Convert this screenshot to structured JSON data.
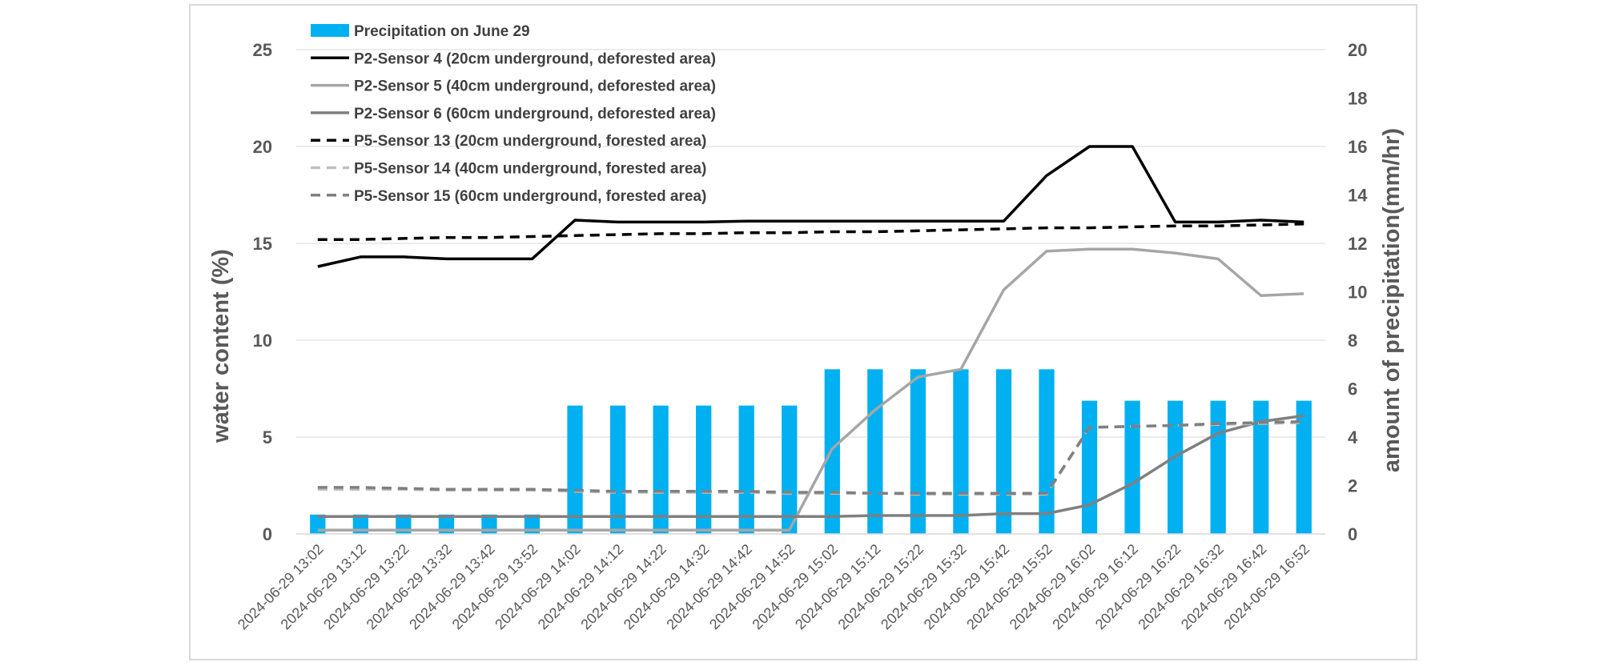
{
  "chart_data": {
    "type": "bar+line",
    "categories": [
      "2024-06-29 13:02",
      "2024-06-29 13:12",
      "2024-06-29 13:22",
      "2024-06-29 13:32",
      "2024-06-29 13:42",
      "2024-06-29 13:52",
      "2024-06-29 14:02",
      "2024-06-29 14:12",
      "2024-06-29 14:22",
      "2024-06-29 14:32",
      "2024-06-29 14:42",
      "2024-06-29 14:52",
      "2024-06-29 15:02",
      "2024-06-29 15:12",
      "2024-06-29 15:22",
      "2024-06-29 15:32",
      "2024-06-29 15:42",
      "2024-06-29 15:52",
      "2024-06-29 16:02",
      "2024-06-29 16:12",
      "2024-06-29 16:22",
      "2024-06-29 16:32",
      "2024-06-29 16:42",
      "2024-06-29 16:52"
    ],
    "ylabel": "water content (%)",
    "y2label": "amount of precipitation(mm/hr)",
    "ylim": [
      0,
      25
    ],
    "y_ticks": [
      0,
      5,
      10,
      15,
      20,
      25
    ],
    "y2lim": [
      0,
      20
    ],
    "y2_ticks": [
      0,
      2,
      4,
      6,
      8,
      10,
      12,
      14,
      16,
      18,
      20
    ],
    "grid": true,
    "legend_position": "top-left",
    "bar_series": {
      "name": "Precipitation on June 29",
      "axis": "secondary",
      "color": "#00b0f0",
      "values": [
        0.8,
        0.8,
        0.8,
        0.8,
        0.8,
        0.8,
        5.3,
        5.3,
        5.3,
        5.3,
        5.3,
        5.3,
        6.8,
        6.8,
        6.8,
        6.8,
        6.8,
        6.8,
        5.5,
        5.5,
        5.5,
        5.5,
        5.5,
        5.5
      ]
    },
    "series": [
      {
        "name": "P2-Sensor 4 (20cm underground, deforested area)",
        "color": "#000000",
        "dash": "solid",
        "values": [
          13.8,
          14.3,
          14.3,
          14.2,
          14.2,
          14.2,
          16.2,
          16.1,
          16.1,
          16.1,
          16.15,
          16.15,
          16.15,
          16.15,
          16.15,
          16.15,
          16.15,
          18.5,
          20,
          20,
          16.1,
          16.1,
          16.2,
          16.1
        ]
      },
      {
        "name": "P2-Sensor 5 (40cm underground, deforested area)",
        "color": "#a6a6a6",
        "dash": "solid",
        "values": [
          0.2,
          0.2,
          0.2,
          0.2,
          0.2,
          0.2,
          0.2,
          0.2,
          0.2,
          0.2,
          0.2,
          0.2,
          4.4,
          6.4,
          8.1,
          8.5,
          12.6,
          14.6,
          14.7,
          14.7,
          14.5,
          14.2,
          12.3,
          12.4
        ]
      },
      {
        "name": "P2-Sensor 6 (60cm underground, deforested area)",
        "color": "#808080",
        "dash": "solid",
        "values": [
          0.9,
          0.9,
          0.9,
          0.9,
          0.9,
          0.9,
          0.9,
          0.9,
          0.9,
          0.9,
          0.9,
          0.9,
          0.9,
          0.95,
          0.95,
          0.95,
          1.05,
          1.05,
          1.5,
          2.6,
          4.0,
          5.2,
          5.8,
          6.1
        ]
      },
      {
        "name": "P5-Sensor 13 (20cm underground, forested area)",
        "color": "#000000",
        "dash": "dashed",
        "values": [
          15.2,
          15.2,
          15.25,
          15.3,
          15.3,
          15.35,
          15.4,
          15.45,
          15.5,
          15.5,
          15.55,
          15.55,
          15.6,
          15.6,
          15.65,
          15.7,
          15.75,
          15.8,
          15.8,
          15.85,
          15.9,
          15.9,
          15.95,
          16.0
        ]
      },
      {
        "name": "P5-Sensor 14 (40cm underground, forested area)",
        "color": "#bfbfbf",
        "dash": "dashed",
        "values": [
          2.3,
          2.3,
          2.3,
          2.25,
          2.25,
          2.25,
          2.2,
          2.15,
          2.15,
          2.15,
          2.15,
          2.1,
          2.1,
          2.1,
          2.05,
          2.05,
          2.05,
          2.05,
          5.5,
          5.55,
          5.6,
          5.65,
          5.7,
          5.75
        ]
      },
      {
        "name": "P5-Sensor 15 (60cm underground, forested area)",
        "color": "#808080",
        "dash": "dashed",
        "values": [
          2.4,
          2.4,
          2.35,
          2.3,
          2.3,
          2.3,
          2.25,
          2.2,
          2.2,
          2.2,
          2.2,
          2.15,
          2.15,
          2.1,
          2.1,
          2.1,
          2.1,
          2.1,
          5.5,
          5.55,
          5.6,
          5.7,
          5.75,
          5.8
        ]
      }
    ]
  }
}
